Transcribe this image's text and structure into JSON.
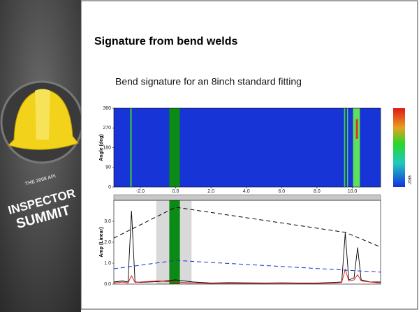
{
  "slide": {
    "title": "Signature from bend welds",
    "subtitle": "Bend signature for an 8inch standard fitting",
    "logo": {
      "tagline": "THE 2008 API",
      "line1": "INSPECTOR",
      "line2": "SUMMIT"
    }
  },
  "chart_data": [
    {
      "type": "heatmap",
      "y_label": "Angle (deg)",
      "xlim": [
        -3.5,
        11.6
      ],
      "ylim": [
        0,
        360
      ],
      "xticks": [
        {
          "value": -2,
          "label": "-2.0"
        },
        {
          "value": 0,
          "label": "0.0"
        },
        {
          "value": 2,
          "label": "2.0"
        },
        {
          "value": 4,
          "label": "4.0"
        },
        {
          "value": 6,
          "label": "6.0"
        },
        {
          "value": 8,
          "label": "8.0"
        },
        {
          "value": 10,
          "label": "10.0"
        }
      ],
      "yticks": [
        0,
        90,
        180,
        270,
        360
      ],
      "background": "#1734d6",
      "colorbar_label": "-20dB",
      "stripes": [
        {
          "color": "#3ccf3a",
          "x": [
            -2.57,
            -2.49
          ],
          "y": [
            0,
            360
          ]
        },
        {
          "color": "#0b8a16",
          "x": [
            -0.36,
            0.24
          ],
          "y": [
            0,
            360
          ]
        },
        {
          "color": "#3ed43e",
          "x": [
            9.53,
            9.6
          ],
          "y": [
            0,
            360
          ]
        },
        {
          "color": "#5cc860",
          "x": [
            9.7,
            9.76
          ],
          "y": [
            0,
            360
          ]
        },
        {
          "color": "#5de05a",
          "x": [
            10.04,
            10.43
          ],
          "y": [
            0,
            360
          ]
        },
        {
          "color": "#d83a1a",
          "x": [
            10.2,
            10.32
          ],
          "y": [
            220,
            310
          ]
        }
      ]
    },
    {
      "type": "line",
      "y_label": "Amp (Linear)",
      "xlim": [
        -3.5,
        11.6
      ],
      "ylim": [
        0,
        4
      ],
      "yticks": [
        {
          "value": 0,
          "label": "0.0"
        },
        {
          "value": 1,
          "label": "1.0"
        },
        {
          "value": 2,
          "label": "2.0"
        },
        {
          "value": 3,
          "label": "3.0"
        }
      ],
      "bands": [
        {
          "color": "#d9d9d9",
          "x": [
            -1.1,
            0.9
          ]
        },
        {
          "color": "#0b8a16",
          "x": [
            -0.36,
            0.24
          ]
        }
      ],
      "series": [
        {
          "color": "#000000",
          "dash": false,
          "x": [
            -3.5,
            -3,
            -2.7,
            -2.5,
            -2.3,
            -2,
            -1,
            0,
            1,
            2,
            3,
            4,
            5,
            6,
            7,
            8,
            9,
            9.4,
            9.6,
            9.8,
            10.1,
            10.3,
            10.5,
            11,
            11.6
          ],
          "values": [
            0.1,
            0.15,
            0.1,
            3.5,
            0.1,
            0.08,
            0.12,
            0.2,
            0.1,
            0.05,
            0.07,
            0.06,
            0.05,
            0.06,
            0.05,
            0.05,
            0.08,
            0.1,
            2.45,
            0.2,
            0.3,
            1.75,
            0.2,
            0.1,
            0.1
          ]
        },
        {
          "color": "#e01010",
          "dash": false,
          "x": [
            -3.5,
            -3,
            -2.7,
            -2.5,
            -2.3,
            -2,
            -1,
            0,
            1,
            2,
            3,
            4,
            5,
            6,
            7,
            8,
            9,
            9.4,
            9.6,
            9.8,
            10.1,
            10.3,
            10.5,
            11,
            11.6
          ],
          "values": [
            0.05,
            0.1,
            0.05,
            0.4,
            0.08,
            0.1,
            0.15,
            0.1,
            0.05,
            0.03,
            0.04,
            0.03,
            0.03,
            0.04,
            0.03,
            0.03,
            0.05,
            0.08,
            0.7,
            0.15,
            0.2,
            0.45,
            0.15,
            0.1,
            0.05
          ]
        },
        {
          "color": "#000000",
          "dash": true,
          "x": [
            -3.5,
            0,
            9.6,
            11.6
          ],
          "values": [
            2.2,
            3.67,
            2.47,
            1.77
          ]
        },
        {
          "color": "#1530d0",
          "dash": true,
          "x": [
            -3.5,
            0,
            11.6
          ],
          "values": [
            0.73,
            1.13,
            0.57
          ]
        }
      ]
    }
  ]
}
